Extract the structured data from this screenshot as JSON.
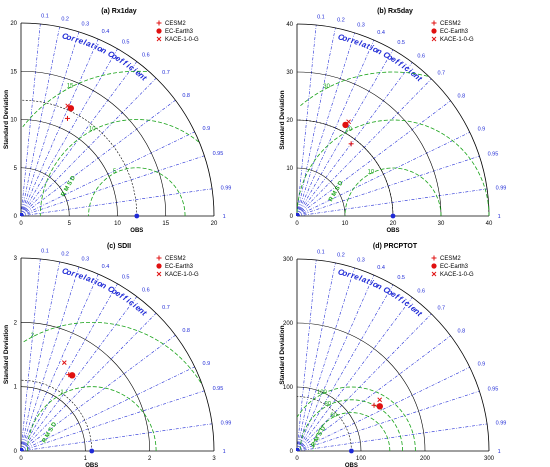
{
  "chart_data": [
    {
      "type": "scatter",
      "subtype": "taylor-diagram",
      "title": "(a) Rx1day",
      "ylabel": "Standard Deviation",
      "xlabel": "OBS",
      "correlation_label": "Correlation Coefficient",
      "rmsd_label": "R M S D",
      "std_range": [
        0,
        20
      ],
      "std_ticks": [
        "0",
        "5",
        "10",
        "15",
        "20"
      ],
      "reference_std": 12,
      "rmsd_contours": [
        "5",
        "10",
        "15"
      ],
      "correlation_ticks": [
        "0.1",
        "0.2",
        "0.3",
        "0.4",
        "0.5",
        "0.6",
        "0.7",
        "0.8",
        "0.9",
        "0.95",
        "0.99",
        "1"
      ],
      "legend": [
        "CESM2",
        "EC-Earth3",
        "KACE-1-0-G"
      ],
      "series": [
        {
          "name": "CESM2",
          "std": 11.2,
          "corr": 0.43
        },
        {
          "name": "EC-Earth3",
          "std": 12.3,
          "corr": 0.42
        },
        {
          "name": "KACE-1-0-G",
          "std": 12.4,
          "corr": 0.39
        }
      ]
    },
    {
      "type": "scatter",
      "subtype": "taylor-diagram",
      "title": "(b) Rx5day",
      "ylabel": "Standard Deviation",
      "xlabel": "OBS",
      "correlation_label": "Correlation Coefficient",
      "rmsd_label": "R M S D",
      "std_range": [
        0,
        40
      ],
      "std_ticks": [
        "0",
        "10",
        "20",
        "30",
        "40"
      ],
      "reference_std": 20,
      "rmsd_contours": [
        "10",
        "20",
        "30"
      ],
      "correlation_ticks": [
        "0.1",
        "0.2",
        "0.3",
        "0.4",
        "0.5",
        "0.6",
        "0.7",
        "0.8",
        "0.9",
        "0.95",
        "0.99",
        "1"
      ],
      "legend": [
        "CESM2",
        "EC-Earth3",
        "KACE-1-0-G"
      ],
      "series": [
        {
          "name": "CESM2",
          "std": 18.8,
          "corr": 0.6
        },
        {
          "name": "EC-Earth3",
          "std": 21.5,
          "corr": 0.47
        },
        {
          "name": "KACE-1-0-G",
          "std": 22.4,
          "corr": 0.48
        }
      ]
    },
    {
      "type": "scatter",
      "subtype": "taylor-diagram",
      "title": "(c) SDII",
      "ylabel": "Standard Deviation",
      "xlabel": "OBS",
      "correlation_label": "Correlation Coefficient",
      "rmsd_label": "R M S D",
      "std_range": [
        0,
        3
      ],
      "std_ticks": [
        "0",
        "1",
        "2",
        "3"
      ],
      "reference_std": 1.1,
      "rmsd_contours": [
        "1",
        "2"
      ],
      "correlation_ticks": [
        "0.1",
        "0.2",
        "0.3",
        "0.4",
        "0.5",
        "0.6",
        "0.7",
        "0.8",
        "0.9",
        "0.95",
        "0.99",
        "1"
      ],
      "legend": [
        "CESM2",
        "EC-Earth3",
        "KACE-1-0-G"
      ],
      "series": [
        {
          "name": "CESM2",
          "std": 1.4,
          "corr": 0.53
        },
        {
          "name": "EC-Earth3",
          "std": 1.42,
          "corr": 0.56
        },
        {
          "name": "KACE-1-0-G",
          "std": 1.53,
          "corr": 0.44
        }
      ]
    },
    {
      "type": "scatter",
      "subtype": "taylor-diagram",
      "title": "(d) PRCPTOT",
      "ylabel": "Standard Deviation",
      "xlabel": "OBS",
      "correlation_label": "Correlation Coefficient",
      "rmsd_label": "R M S D",
      "std_range": [
        0,
        300
      ],
      "std_ticks": [
        "0",
        "100",
        "200",
        "300"
      ],
      "reference_std": 85,
      "rmsd_contours": [
        "60",
        "80",
        "100"
      ],
      "correlation_ticks": [
        "0.1",
        "0.2",
        "0.3",
        "0.4",
        "0.5",
        "0.6",
        "0.7",
        "0.8",
        "0.9",
        "0.95",
        "0.99",
        "1"
      ],
      "legend": [
        "CESM2",
        "EC-Earth3",
        "KACE-1-0-G"
      ],
      "series": [
        {
          "name": "CESM2",
          "std": 140,
          "corr": 0.86
        },
        {
          "name": "EC-Earth3",
          "std": 147,
          "corr": 0.88
        },
        {
          "name": "KACE-1-0-G",
          "std": 152,
          "corr": 0.85
        }
      ]
    }
  ],
  "colors": {
    "correlation_lines": "#1f2ad6",
    "rmsd_contours": "#19a319",
    "std_arcs": "#000000",
    "markers": "#e01010",
    "reference": "#1f2ad6"
  }
}
